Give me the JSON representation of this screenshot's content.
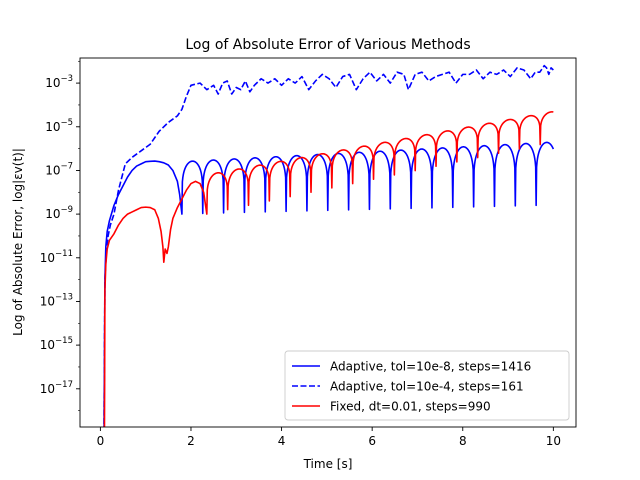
{
  "chart_data": {
    "type": "line",
    "title": "Log of Absolute Error of Various Methods",
    "xlabel": "Time [s]",
    "ylabel": "Log of Absolute Error,  log|εv(t)|",
    "xlim": [
      -0.45,
      10.5
    ],
    "ylim_log10": [
      -18.75,
      -1.85
    ],
    "y_scale": "log",
    "grid": false,
    "x_ticks": [
      {
        "value": 0,
        "label": "0"
      },
      {
        "value": 2,
        "label": "2"
      },
      {
        "value": 4,
        "label": "4"
      },
      {
        "value": 6,
        "label": "6"
      },
      {
        "value": 8,
        "label": "8"
      },
      {
        "value": 10,
        "label": "10"
      }
    ],
    "y_ticks": [
      {
        "value": -3,
        "base": "10",
        "exp": "−3"
      },
      {
        "value": -5,
        "base": "10",
        "exp": "−5"
      },
      {
        "value": -7,
        "base": "10",
        "exp": "−7"
      },
      {
        "value": -9,
        "base": "10",
        "exp": "−9"
      },
      {
        "value": -11,
        "base": "10",
        "exp": "−11"
      },
      {
        "value": -13,
        "base": "10",
        "exp": "−13"
      },
      {
        "value": -15,
        "base": "10",
        "exp": "−15"
      },
      {
        "value": -17,
        "base": "10",
        "exp": "−17"
      }
    ],
    "legend_position": "lower-right",
    "series": [
      {
        "name": "Adaptive, tol=10e-8, steps=1416",
        "color": "#0000ff",
        "dash": "solid",
        "x": [
          0.08,
          0.1,
          0.12,
          0.15,
          0.2,
          0.3,
          0.4,
          0.5,
          0.6,
          0.7,
          0.8,
          0.9,
          1.0,
          1.1,
          1.2,
          1.3,
          1.4,
          1.5,
          1.6,
          1.7,
          1.75,
          1.8
        ],
        "y_log10": [
          -19,
          -12.0,
          -10.5,
          -9.8,
          -9.3,
          -8.6,
          -8.1,
          -7.7,
          -7.3,
          -7.0,
          -6.8,
          -6.7,
          -6.6,
          -6.58,
          -6.57,
          -6.6,
          -6.65,
          -6.75,
          -7.0,
          -7.5,
          -8.1,
          -9.0
        ],
        "envelope": {
          "t_start": 1.8,
          "t_end": 10.0,
          "period": 0.46,
          "peak_log10_start": -6.6,
          "peak_log10_end": -5.7,
          "trough_log10_start": -9.0,
          "trough_log10_end": -8.6
        }
      },
      {
        "name": "Adaptive, tol=10e-4, steps=161",
        "color": "#0000ff",
        "dash": "dashed",
        "x": [
          0.08,
          0.1,
          0.13,
          0.17,
          0.22,
          0.3,
          0.4,
          0.55,
          0.7,
          0.9,
          1.1,
          1.3,
          1.5,
          1.7,
          1.8,
          1.9,
          2.0,
          2.2,
          2.35,
          2.5,
          2.6,
          2.7,
          2.8,
          2.9,
          3.0,
          3.1,
          3.2,
          3.3,
          3.4,
          3.55,
          3.7,
          3.85,
          4.0,
          4.15,
          4.3,
          4.45,
          4.6,
          4.75,
          4.9,
          5.05,
          5.2,
          5.35,
          5.5,
          5.65,
          5.8,
          5.95,
          6.1,
          6.25,
          6.4,
          6.55,
          6.7,
          6.8,
          6.95,
          7.1,
          7.25,
          7.4,
          7.55,
          7.7,
          7.85,
          8.0,
          8.15,
          8.3,
          8.45,
          8.6,
          8.75,
          8.9,
          9.05,
          9.2,
          9.35,
          9.5,
          9.6,
          9.7,
          9.8,
          9.85,
          9.9,
          9.95,
          10.0
        ],
        "y_log10": [
          -19,
          -12.0,
          -10.8,
          -10.0,
          -9.5,
          -9.0,
          -7.9,
          -6.7,
          -6.4,
          -6.1,
          -5.8,
          -5.2,
          -4.8,
          -4.5,
          -4.2,
          -3.6,
          -3.1,
          -3.0,
          -3.3,
          -3.1,
          -3.5,
          -3.0,
          -2.9,
          -3.5,
          -3.2,
          -3.3,
          -2.9,
          -3.4,
          -3.1,
          -2.8,
          -3.0,
          -2.8,
          -3.1,
          -2.8,
          -3.0,
          -2.7,
          -3.3,
          -2.9,
          -2.6,
          -2.8,
          -3.2,
          -2.7,
          -2.6,
          -3.3,
          -2.8,
          -2.5,
          -2.9,
          -2.6,
          -3.0,
          -2.5,
          -2.6,
          -3.3,
          -2.6,
          -2.5,
          -2.9,
          -2.7,
          -2.6,
          -2.5,
          -3.0,
          -2.6,
          -2.6,
          -2.4,
          -2.8,
          -2.5,
          -2.6,
          -2.4,
          -2.7,
          -2.3,
          -2.4,
          -2.8,
          -2.5,
          -2.5,
          -2.2,
          -2.3,
          -2.6,
          -2.3,
          -2.4
        ]
      },
      {
        "name": "Fixed, dt=0.01, steps=990",
        "color": "#ff0000",
        "dash": "solid",
        "x": [
          0.09,
          0.1,
          0.12,
          0.15,
          0.2,
          0.3,
          0.4,
          0.5,
          0.6,
          0.7,
          0.8,
          0.9,
          1.0,
          1.1,
          1.2,
          1.28,
          1.34,
          1.38,
          1.4,
          1.43,
          1.47,
          1.5,
          1.55,
          1.6,
          1.7,
          1.8,
          1.9,
          2.0,
          2.1,
          2.2,
          2.28,
          2.35
        ],
        "y_log10": [
          -19,
          -12.5,
          -11.3,
          -10.6,
          -10.2,
          -9.9,
          -9.5,
          -9.2,
          -9.0,
          -8.9,
          -8.8,
          -8.7,
          -8.68,
          -8.7,
          -8.8,
          -9.2,
          -9.8,
          -10.5,
          -11.2,
          -10.6,
          -10.8,
          -10.5,
          -9.7,
          -9.2,
          -8.7,
          -8.3,
          -7.9,
          -7.6,
          -7.5,
          -7.6,
          -8.0,
          -9.0
        ],
        "envelope": {
          "t_start": 2.35,
          "t_end": 10.0,
          "period": 0.46,
          "peak_log10_start": -7.2,
          "peak_log10_end": -4.3,
          "trough_log10_start": -9.0,
          "trough_log10_end": -5.7
        }
      }
    ]
  }
}
